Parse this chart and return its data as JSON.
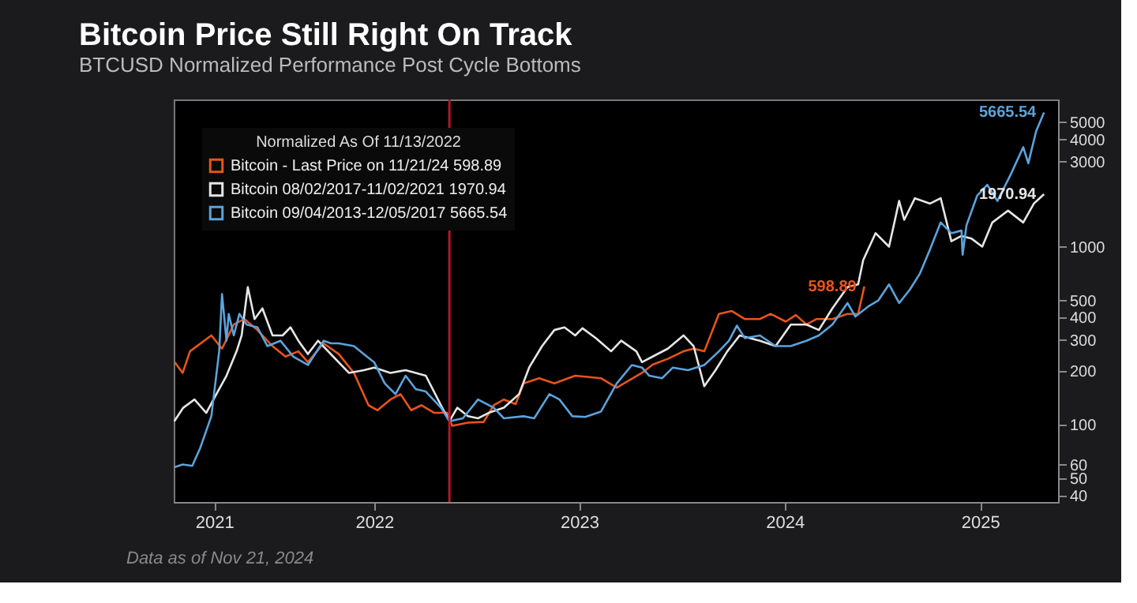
{
  "chart_data": {
    "type": "line",
    "title": "Bitcoin Price Still Right On Track",
    "subtitle": "BTCUSD Normalized Performance Post Cycle Bottoms",
    "legend_title": "Normalized As Of 11/13/2022",
    "legend": "top left",
    "log": "y",
    "xlim": [
      "2021-07-10",
      "2025-11-01"
    ],
    "xticks": [
      {
        "value": "2021-09-20",
        "label": "2021"
      },
      {
        "value": "2022-07-02",
        "label": "2022"
      },
      {
        "value": "2023-07-02",
        "label": "2023"
      },
      {
        "value": "2024-07-02",
        "label": "2024"
      },
      {
        "value": "2025-06-15",
        "label": "2025"
      }
    ],
    "ylim": [
      37,
      6700
    ],
    "yticks": [
      40,
      50,
      60,
      100,
      200,
      300,
      400,
      500,
      1000,
      3000,
      4000,
      5000
    ],
    "ref_lines": [
      {
        "axis": "x",
        "value": "2022-11-13",
        "color": "#b0182a"
      }
    ],
    "series": [
      {
        "name": "Bitcoin - Last Price on 11/21/24 598.89",
        "color": "#e8541a",
        "x": [
          "2021-07-12",
          "2021-07-26",
          "2021-08-08",
          "2021-09-15",
          "2021-10-04",
          "2021-10-25",
          "2021-11-13",
          "2021-12-06",
          "2022-01-02",
          "2022-01-25",
          "2022-02-17",
          "2022-03-06",
          "2022-04-03",
          "2022-04-30",
          "2022-05-27",
          "2022-06-22",
          "2022-07-08",
          "2022-07-31",
          "2022-08-18",
          "2022-09-06",
          "2022-09-24",
          "2022-10-17",
          "2022-11-09",
          "2022-11-18",
          "2022-12-16",
          "2023-01-13",
          "2023-01-31",
          "2023-02-18",
          "2023-03-11",
          "2023-03-25",
          "2023-04-22",
          "2023-05-19",
          "2023-06-25",
          "2023-08-10",
          "2023-09-07",
          "2023-10-22",
          "2023-11-10",
          "2023-12-07",
          "2024-01-04",
          "2024-01-22",
          "2024-02-10",
          "2024-03-07",
          "2024-03-30",
          "2024-04-22",
          "2024-05-19",
          "2024-06-07",
          "2024-07-04",
          "2024-07-22",
          "2024-08-10",
          "2024-08-28",
          "2024-09-25",
          "2024-10-22",
          "2024-11-10",
          "2024-11-21"
        ],
        "values": [
          225,
          196,
          259,
          318,
          268,
          366,
          393,
          341,
          277,
          242,
          259,
          225,
          287,
          250,
          196,
          129,
          121,
          139,
          149,
          121,
          129,
          117,
          117,
          99,
          103,
          104,
          129,
          139,
          131,
          171,
          183,
          171,
          189,
          183,
          162,
          196,
          218,
          235,
          259,
          268,
          259,
          420,
          436,
          393,
          393,
          420,
          380,
          414,
          366,
          393,
          393,
          420,
          420,
          598.89
        ],
        "value_labels": [
          null,
          null,
          null,
          null,
          null,
          null,
          null,
          null,
          null,
          null,
          null,
          null,
          null,
          null,
          null,
          null,
          null,
          null,
          null,
          null,
          null,
          null,
          null,
          null,
          null,
          null,
          null,
          null,
          null,
          null,
          null,
          null,
          null,
          null,
          null,
          null,
          null,
          null,
          null,
          null,
          null,
          null,
          null,
          null,
          null,
          null,
          null,
          null,
          null,
          null,
          null,
          null,
          null,
          "598.89"
        ]
      },
      {
        "name": "Bitcoin 08/02/2017-11/02/2021 1970.94",
        "color": "#e6e6e6",
        "x": [
          "2021-07-11",
          "2021-07-27",
          "2021-08-16",
          "2021-09-06",
          "2021-09-24",
          "2021-10-12",
          "2021-10-30",
          "2021-11-08",
          "2021-11-19",
          "2021-12-01",
          "2021-12-15",
          "2022-01-02",
          "2022-01-20",
          "2022-02-03",
          "2022-02-17",
          "2022-03-06",
          "2022-03-24",
          "2022-04-20",
          "2022-05-18",
          "2022-06-14",
          "2022-07-02",
          "2022-07-31",
          "2022-08-27",
          "2022-10-02",
          "2022-10-29",
          "2022-11-13",
          "2022-11-27",
          "2022-12-16",
          "2023-01-03",
          "2023-01-22",
          "2023-02-18",
          "2023-03-17",
          "2023-04-04",
          "2023-04-27",
          "2023-05-19",
          "2023-06-06",
          "2023-06-25",
          "2023-07-08",
          "2023-08-01",
          "2023-08-28",
          "2023-09-15",
          "2023-10-12",
          "2023-10-22",
          "2023-11-10",
          "2023-12-07",
          "2024-01-04",
          "2024-01-22",
          "2024-02-10",
          "2024-03-01",
          "2024-03-22",
          "2024-04-13",
          "2024-05-19",
          "2024-06-16",
          "2024-07-13",
          "2024-08-10",
          "2024-09-01",
          "2024-09-25",
          "2024-10-22",
          "2024-11-10",
          "2024-11-19",
          "2024-12-11",
          "2025-01-04",
          "2025-01-22",
          "2025-01-31",
          "2025-02-19",
          "2025-03-18",
          "2025-04-06",
          "2025-04-25",
          "2025-05-13",
          "2025-05-31",
          "2025-06-19",
          "2025-07-07",
          "2025-08-04",
          "2025-08-31",
          "2025-09-19",
          "2025-10-07"
        ],
        "values": [
          105,
          125,
          139,
          117,
          149,
          189,
          259,
          318,
          594,
          393,
          451,
          318,
          318,
          353,
          297,
          250,
          297,
          242,
          196,
          203,
          210,
          196,
          203,
          189,
          129,
          105,
          125,
          112,
          109,
          117,
          125,
          149,
          210,
          277,
          341,
          353,
          318,
          349,
          307,
          259,
          297,
          259,
          225,
          242,
          268,
          318,
          277,
          165,
          203,
          259,
          318,
          297,
          277,
          366,
          366,
          341,
          451,
          594,
          615,
          841,
          1191,
          1001,
          1806,
          1416,
          1870,
          1746,
          1870,
          1073,
          1150,
          1110,
          1001,
          1368,
          1594,
          1368,
          1746,
          1970.94
        ],
        "value_labels": [
          null,
          null,
          null,
          null,
          null,
          null,
          null,
          null,
          null,
          null,
          null,
          null,
          null,
          null,
          null,
          null,
          null,
          null,
          null,
          null,
          null,
          null,
          null,
          null,
          null,
          null,
          null,
          null,
          null,
          null,
          null,
          null,
          null,
          null,
          null,
          null,
          null,
          null,
          null,
          null,
          null,
          null,
          null,
          null,
          null,
          null,
          null,
          null,
          null,
          null,
          null,
          null,
          null,
          null,
          null,
          null,
          null,
          null,
          null,
          null,
          null,
          null,
          null,
          null,
          null,
          null,
          null,
          null,
          null,
          null,
          null,
          null,
          null,
          null,
          null,
          "1970.94"
        ]
      },
      {
        "name": "Bitcoin 09/04/2013-12/05/2017 5665.54",
        "color": "#5ba3dc",
        "x": [
          "2021-07-11",
          "2021-07-26",
          "2021-08-12",
          "2021-08-26",
          "2021-09-15",
          "2021-09-29",
          "2021-10-04",
          "2021-10-12",
          "2021-10-16",
          "2021-10-25",
          "2021-11-04",
          "2021-11-17",
          "2021-12-06",
          "2021-12-24",
          "2022-01-16",
          "2022-02-08",
          "2022-03-06",
          "2022-04-03",
          "2022-04-16",
          "2022-04-30",
          "2022-05-27",
          "2022-06-19",
          "2022-07-02",
          "2022-07-21",
          "2022-08-09",
          "2022-08-27",
          "2022-09-14",
          "2022-10-02",
          "2022-10-29",
          "2022-11-13",
          "2022-12-07",
          "2023-01-03",
          "2023-01-31",
          "2023-02-18",
          "2023-03-25",
          "2023-04-13",
          "2023-05-10",
          "2023-05-28",
          "2023-06-20",
          "2023-07-13",
          "2023-08-10",
          "2023-09-07",
          "2023-10-04",
          "2023-10-22",
          "2023-11-04",
          "2023-11-27",
          "2023-12-16",
          "2024-01-12",
          "2024-02-10",
          "2024-03-07",
          "2024-03-25",
          "2024-04-08",
          "2024-04-22",
          "2024-05-19",
          "2024-06-16",
          "2024-07-13",
          "2024-08-10",
          "2024-09-01",
          "2024-09-25",
          "2024-10-22",
          "2024-11-05",
          "2024-11-30",
          "2024-12-16",
          "2025-01-04",
          "2025-01-22",
          "2025-02-10",
          "2025-02-28",
          "2025-03-18",
          "2025-04-06",
          "2025-04-25",
          "2025-05-13",
          "2025-05-15",
          "2025-05-22",
          "2025-06-10",
          "2025-06-28",
          "2025-07-16",
          "2025-08-09",
          "2025-08-31",
          "2025-09-09",
          "2025-09-23",
          "2025-10-07"
        ],
        "values": [
          58,
          60,
          59,
          74,
          112,
          259,
          543,
          297,
          420,
          318,
          420,
          366,
          353,
          277,
          297,
          242,
          217,
          297,
          287,
          287,
          277,
          242,
          225,
          171,
          149,
          189,
          159,
          154,
          125,
          105,
          109,
          139,
          125,
          109,
          112,
          109,
          149,
          139,
          112,
          111,
          119,
          171,
          217,
          210,
          189,
          183,
          210,
          203,
          217,
          259,
          297,
          361,
          307,
          318,
          277,
          277,
          297,
          318,
          366,
          483,
          406,
          467,
          500,
          615,
          483,
          574,
          707,
          967,
          1368,
          1191,
          1232,
          902,
          1320,
          1935,
          2224,
          1806,
          2553,
          3617,
          2939,
          4448,
          5665.54
        ],
        "value_labels": [
          null,
          null,
          null,
          null,
          null,
          null,
          null,
          null,
          null,
          null,
          null,
          null,
          null,
          null,
          null,
          null,
          null,
          null,
          null,
          null,
          null,
          null,
          null,
          null,
          null,
          null,
          null,
          null,
          null,
          null,
          null,
          null,
          null,
          null,
          null,
          null,
          null,
          null,
          null,
          null,
          null,
          null,
          null,
          null,
          null,
          null,
          null,
          null,
          null,
          null,
          null,
          null,
          null,
          null,
          null,
          null,
          null,
          null,
          null,
          null,
          null,
          null,
          null,
          null,
          null,
          null,
          null,
          null,
          null,
          null,
          null,
          null,
          null,
          null,
          null,
          null,
          null,
          null,
          null,
          null,
          "5665.54"
        ]
      }
    ],
    "annotations": [
      "Data as of Nov 21, 2024"
    ]
  }
}
